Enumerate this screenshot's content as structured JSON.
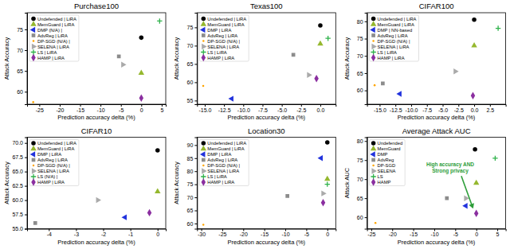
{
  "chart_data": [
    {
      "type": "scatter",
      "title": "Purchase100",
      "x_label": "Prediction accuracy delta (%)",
      "y_label": "Attack Accuracy",
      "xlim": [
        -28,
        6
      ],
      "ylim": [
        57,
        79
      ],
      "xticks": [
        -25,
        -20,
        -15,
        -10,
        -5,
        0,
        5
      ],
      "yticks": [
        60,
        65,
        70,
        75
      ],
      "legend": "upper left",
      "series": [
        {
          "name": "Undefended | LiRA",
          "color": "#000000",
          "marker": "circle",
          "x": [
            0
          ],
          "values": [
            73
          ]
        },
        {
          "name": "MemGuard | LiRA",
          "color": "#95b82e",
          "marker": "triangle-up",
          "x": [
            0
          ],
          "values": [
            64.5
          ]
        },
        {
          "name": "DMP (N/A) |",
          "color": "#2233dd",
          "marker": "triangle-left",
          "x": [],
          "values": []
        },
        {
          "name": "AdvReg | LiRA",
          "color": "#8c8c8c",
          "marker": "square",
          "x": [
            -5.5
          ],
          "values": [
            68.5
          ]
        },
        {
          "name": "DP-SGD (N/A) |",
          "color": "#ffa500",
          "marker": "point",
          "x": [
            -26.5
          ],
          "values": [
            57.5
          ]
        },
        {
          "name": "SELENA | LiRA",
          "color": "#aaaaaa",
          "marker": "triangle-right",
          "x": [
            -4.5
          ],
          "values": [
            66.5
          ]
        },
        {
          "name": "LS | LiRA",
          "color": "#2eb24a",
          "marker": "plus",
          "x": [
            4.5
          ],
          "values": [
            77
          ]
        },
        {
          "name": "HAMP | LiRA",
          "color": "#8b2fa0",
          "marker": "diamond",
          "x": [
            0
          ],
          "values": [
            58.5
          ]
        }
      ]
    },
    {
      "type": "scatter",
      "title": "Texas100",
      "x_label": "Prediction accuracy delta (%)",
      "y_label": "Attack Accuracy",
      "xlim": [
        -16,
        2
      ],
      "ylim": [
        54,
        79
      ],
      "xticks": [
        {
          "value": -15,
          "label": "-15.0"
        },
        {
          "value": -12.5,
          "label": "-12.5"
        },
        {
          "value": -10,
          "label": "-10.0"
        },
        {
          "value": -7.5,
          "label": "-7.5"
        },
        {
          "value": -5,
          "label": "-5.0"
        },
        {
          "value": -2.5,
          "label": "-2.5"
        },
        {
          "value": 0,
          "label": "0.0"
        }
      ],
      "yticks": [
        55,
        60,
        65,
        70,
        75
      ],
      "legend": "upper left",
      "series": [
        {
          "name": "Undefended | LiRA",
          "color": "#000000",
          "marker": "circle",
          "x": [
            0
          ],
          "values": [
            75.5
          ]
        },
        {
          "name": "MemGuard | LiRA",
          "color": "#95b82e",
          "marker": "triangle-up",
          "x": [
            0
          ],
          "values": [
            70.5
          ]
        },
        {
          "name": "DMP | LiRA",
          "color": "#2233dd",
          "marker": "triangle-left",
          "x": [
            -11.5
          ],
          "values": [
            55.5
          ]
        },
        {
          "name": "AdvReg | LiRA",
          "color": "#8c8c8c",
          "marker": "square",
          "x": [
            -3.5
          ],
          "values": [
            67.5
          ]
        },
        {
          "name": "DP-SGD (N/A) |",
          "color": "#ffa500",
          "marker": "point",
          "x": [
            -15.2
          ],
          "values": [
            59
          ]
        },
        {
          "name": "SELENA | LiRA",
          "color": "#aaaaaa",
          "marker": "triangle-right",
          "x": [
            -1.5
          ],
          "values": [
            62
          ]
        },
        {
          "name": "LS | LiRA",
          "color": "#2eb24a",
          "marker": "plus",
          "x": [
            1
          ],
          "values": [
            72
          ]
        },
        {
          "name": "HAMP | LiRA",
          "color": "#8b2fa0",
          "marker": "diamond",
          "x": [
            -0.5
          ],
          "values": [
            61
          ]
        }
      ]
    },
    {
      "type": "scatter",
      "title": "CIFAR100",
      "x_label": "Prediction accuracy delta (%)",
      "y_label": "Attack Accuracy",
      "xlim": [
        -17,
        5
      ],
      "ylim": [
        56,
        82.5
      ],
      "xticks": [
        {
          "value": -15,
          "label": "-15.0"
        },
        {
          "value": -12.5,
          "label": "-12.5"
        },
        {
          "value": -10,
          "label": "-10.0"
        },
        {
          "value": -7.5,
          "label": "-7.5"
        },
        {
          "value": -5,
          "label": "-5.0"
        },
        {
          "value": -2.5,
          "label": "-2.5"
        },
        {
          "value": 0,
          "label": "0.0"
        },
        {
          "value": 2.5,
          "label": "2.5"
        }
      ],
      "yticks": [
        60,
        65,
        70,
        75,
        80
      ],
      "legend": "upper left",
      "series": [
        {
          "name": "Undefended | LiRA",
          "color": "#000000",
          "marker": "circle",
          "x": [
            0
          ],
          "values": [
            80.5
          ]
        },
        {
          "name": "MemGuard | LiRA",
          "color": "#95b82e",
          "marker": "triangle-up",
          "x": [
            0
          ],
          "values": [
            73
          ]
        },
        {
          "name": "DMP | NN-based",
          "color": "#2233dd",
          "marker": "triangle-left",
          "x": [
            -11.8
          ],
          "values": [
            59
          ]
        },
        {
          "name": "AdvReg | LiRA",
          "color": "#8c8c8c",
          "marker": "square",
          "x": [
            -14.5
          ],
          "values": [
            62
          ]
        },
        {
          "name": "DP-SGD (N/A) |",
          "color": "#ffa500",
          "marker": "point",
          "x": [
            -15.8
          ],
          "values": [
            61.5
          ]
        },
        {
          "name": "SELENA | LiRA",
          "color": "#aaaaaa",
          "marker": "triangle-right",
          "x": [
            -3
          ],
          "values": [
            65.5
          ]
        },
        {
          "name": "LS | LiRA",
          "color": "#2eb24a",
          "marker": "plus",
          "x": [
            3.8
          ],
          "values": [
            78
          ]
        },
        {
          "name": "HAMP | LiRA",
          "color": "#8b2fa0",
          "marker": "diamond",
          "x": [
            -0.2
          ],
          "values": [
            58.5
          ]
        }
      ]
    },
    {
      "type": "scatter",
      "title": "CIFAR10",
      "x_label": "Prediction accuracy delta (%)",
      "y_label": "Attack Accuracy",
      "xlim": [
        -4.8,
        0.3
      ],
      "ylim": [
        55,
        71
      ],
      "xticks": [
        -4,
        -3,
        -2,
        -1,
        0
      ],
      "yticks": [
        {
          "value": 55,
          "label": "55.0"
        },
        {
          "value": 57.5,
          "label": "57.5"
        },
        {
          "value": 60,
          "label": "60.0"
        },
        {
          "value": 62.5,
          "label": "62.5"
        },
        {
          "value": 65,
          "label": "65.0"
        },
        {
          "value": 67.5,
          "label": "67.5"
        },
        {
          "value": 70,
          "label": "70.0"
        }
      ],
      "legend": "upper left",
      "series": [
        {
          "name": "Undefended | LiRA",
          "color": "#000000",
          "marker": "circle",
          "x": [
            0
          ],
          "values": [
            68.7
          ]
        },
        {
          "name": "MemGuard | LiRA",
          "color": "#95b82e",
          "marker": "triangle-up",
          "x": [
            0
          ],
          "values": [
            61.5
          ]
        },
        {
          "name": "DMP | LiRA",
          "color": "#2233dd",
          "marker": "triangle-left",
          "x": [
            -1.2
          ],
          "values": [
            57
          ]
        },
        {
          "name": "AdvReg | LiRA",
          "color": "#8c8c8c",
          "marker": "square",
          "x": [
            -4.5
          ],
          "values": [
            56
          ]
        },
        {
          "name": "DP-SGD (N/A) |",
          "color": "#ffa500",
          "marker": "point",
          "x": [],
          "values": []
        },
        {
          "name": "SELENA | LiRA",
          "color": "#aaaaaa",
          "marker": "triangle-right",
          "x": [
            -2.2
          ],
          "values": [
            60
          ]
        },
        {
          "name": "LS (N/A) |",
          "color": "#2eb24a",
          "marker": "plus",
          "x": [],
          "values": []
        },
        {
          "name": "HAMP | LiRA",
          "color": "#8b2fa0",
          "marker": "diamond",
          "x": [
            -0.3
          ],
          "values": [
            57.8
          ]
        }
      ]
    },
    {
      "type": "scatter",
      "title": "Location30",
      "x_label": "Prediction accuracy delta (%)",
      "y_label": "Attack Accuracy",
      "xlim": [
        -31,
        2
      ],
      "ylim": [
        58,
        93
      ],
      "xticks": [
        -30,
        -25,
        -20,
        -15,
        -10,
        -5,
        0
      ],
      "yticks": [
        60,
        65,
        70,
        75,
        80,
        85,
        90
      ],
      "legend": "upper left",
      "series": [
        {
          "name": "Undefended | LiRA",
          "color": "#000000",
          "marker": "circle",
          "x": [
            0
          ],
          "values": [
            91
          ]
        },
        {
          "name": "MemGuard | LiRA",
          "color": "#95b82e",
          "marker": "triangle-up",
          "x": [
            0
          ],
          "values": [
            77
          ]
        },
        {
          "name": "DMP | LiRA",
          "color": "#2233dd",
          "marker": "triangle-left",
          "x": [
            -1.5
          ],
          "values": [
            85
          ]
        },
        {
          "name": "AdvReg | LiRA",
          "color": "#8c8c8c",
          "marker": "square",
          "x": [
            -9.5
          ],
          "values": [
            70.5
          ]
        },
        {
          "name": "DP-SGD (N/A) |",
          "color": "#ffa500",
          "marker": "point",
          "x": [
            -29.5
          ],
          "values": [
            59.5
          ]
        },
        {
          "name": "SELENA | LiRA",
          "color": "#aaaaaa",
          "marker": "triangle-right",
          "x": [
            -1
          ],
          "values": [
            71.5
          ]
        },
        {
          "name": "LS | LiRA",
          "color": "#2eb24a",
          "marker": "plus",
          "x": [
            0
          ],
          "values": [
            75
          ]
        },
        {
          "name": "HAMP | LiRA",
          "color": "#8b2fa0",
          "marker": "diamond",
          "x": [
            -1
          ],
          "values": [
            68
          ]
        }
      ]
    },
    {
      "type": "scatter",
      "title": "Average Attack AUC",
      "x_label": "Prediction accuracy delta (%)",
      "y_label": "Attack AUC",
      "xlim": [
        -26,
        7
      ],
      "ylim": [
        57,
        81
      ],
      "xticks": [
        -25,
        -20,
        -15,
        -10,
        -5,
        0,
        5
      ],
      "yticks": [
        60,
        65,
        70,
        75,
        80
      ],
      "legend": "upper left",
      "annotation": [
        "High accuracy AND",
        "Strong privacy"
      ],
      "series": [
        {
          "name": "Undefended",
          "color": "#000000",
          "marker": "circle",
          "x": [
            -0.3
          ],
          "values": [
            77.8
          ]
        },
        {
          "name": "MemGuard",
          "color": "#95b82e",
          "marker": "triangle-up",
          "x": [
            0
          ],
          "values": [
            69
          ]
        },
        {
          "name": "DMP",
          "color": "#2233dd",
          "marker": "triangle-left",
          "x": [
            -2.5
          ],
          "values": [
            63
          ]
        },
        {
          "name": "AdvReg",
          "color": "#8c8c8c",
          "marker": "square",
          "x": [
            -7
          ],
          "values": [
            65
          ]
        },
        {
          "name": "DP-SGD",
          "color": "#ffa500",
          "marker": "point",
          "x": [
            -24
          ],
          "values": [
            58.5
          ]
        },
        {
          "name": "SELENA",
          "color": "#aaaaaa",
          "marker": "triangle-right",
          "x": [
            -2.5
          ],
          "values": [
            65
          ]
        },
        {
          "name": "LS",
          "color": "#2eb24a",
          "marker": "plus",
          "x": [
            4.5
          ],
          "values": [
            75.5
          ]
        },
        {
          "name": "HAMP",
          "color": "#8b2fa0",
          "marker": "diamond",
          "x": [
            0
          ],
          "values": [
            61
          ]
        }
      ]
    }
  ]
}
